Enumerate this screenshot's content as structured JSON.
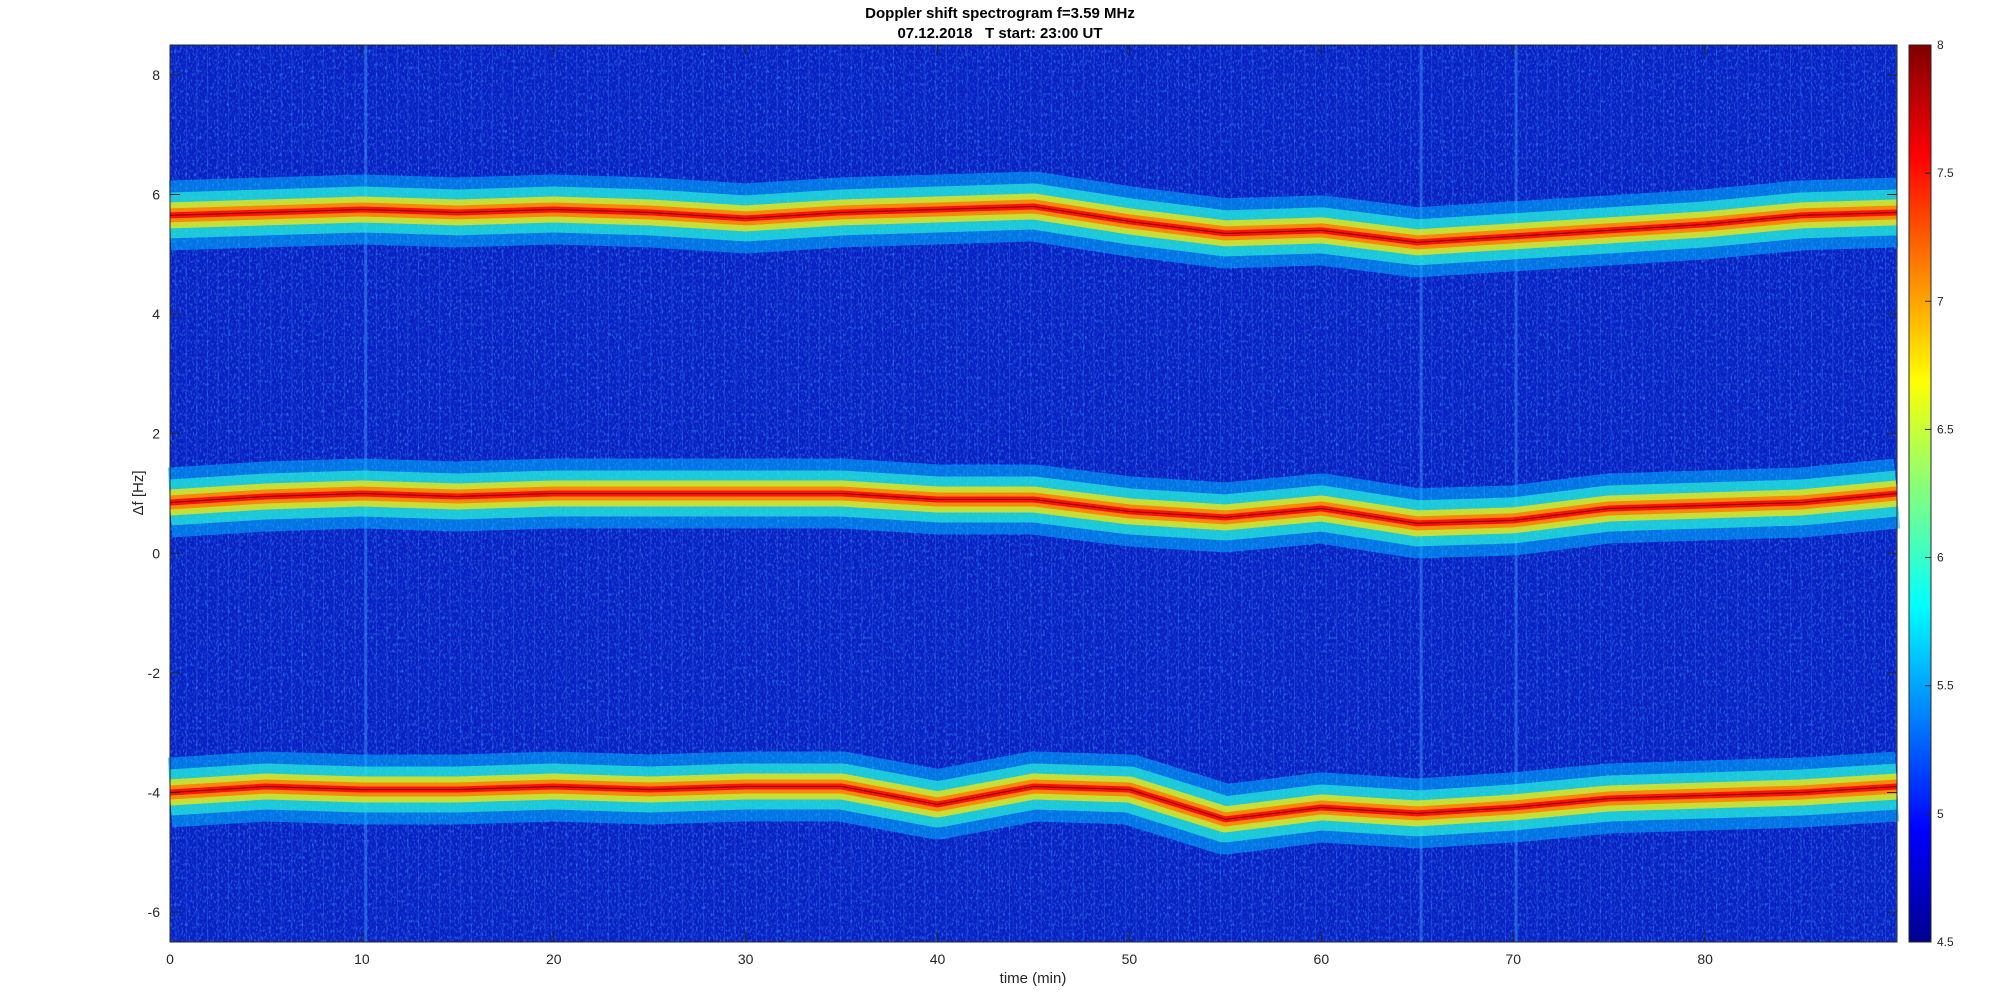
{
  "chart_data": {
    "type": "heatmap",
    "title": "Doppler shift spectrogram f=3.59 MHz",
    "subtitle": "07.12.2018   T start: 23:00 UT",
    "xlabel": "time (min)",
    "ylabel": "Δf [Hz]",
    "xlim": [
      0,
      90
    ],
    "ylim": [
      -6.5,
      8.5
    ],
    "xticks": [
      0,
      10,
      20,
      30,
      40,
      50,
      60,
      70,
      80
    ],
    "yticks": [
      -6,
      -4,
      -2,
      0,
      2,
      4,
      6,
      8
    ],
    "colorbar": {
      "colormap": "jet",
      "clim": [
        4.5,
        8
      ],
      "ticks": [
        4.5,
        5,
        5.5,
        6,
        6.5,
        7,
        7.5,
        8
      ]
    },
    "grid": false,
    "series": [
      {
        "x": [
          0,
          5,
          10,
          15,
          20,
          25,
          30,
          35,
          40,
          45,
          50,
          55,
          60,
          65,
          70,
          75,
          80,
          85,
          90
        ],
        "y": [
          5.65,
          5.7,
          5.75,
          5.7,
          5.75,
          5.7,
          5.6,
          5.7,
          5.75,
          5.8,
          5.55,
          5.35,
          5.4,
          5.2,
          5.3,
          5.4,
          5.5,
          5.65,
          5.7
        ]
      },
      {
        "x": [
          0,
          5,
          10,
          15,
          20,
          25,
          30,
          35,
          40,
          45,
          50,
          55,
          60,
          65,
          70,
          75,
          80,
          85,
          90
        ],
        "y": [
          0.85,
          0.95,
          1.0,
          0.95,
          1.0,
          1.0,
          1.0,
          1.0,
          0.9,
          0.9,
          0.7,
          0.6,
          0.75,
          0.5,
          0.55,
          0.75,
          0.8,
          0.85,
          1.0
        ]
      },
      {
        "x": [
          0,
          5,
          10,
          15,
          20,
          25,
          30,
          35,
          40,
          45,
          50,
          55,
          60,
          65,
          70,
          75,
          80,
          85,
          90
        ],
        "y": [
          -4.0,
          -3.9,
          -3.95,
          -3.95,
          -3.9,
          -3.95,
          -3.9,
          -3.9,
          -4.2,
          -3.9,
          -3.95,
          -4.45,
          -4.25,
          -4.35,
          -4.25,
          -4.1,
          -4.05,
          -4.0,
          -3.9
        ]
      }
    ]
  }
}
